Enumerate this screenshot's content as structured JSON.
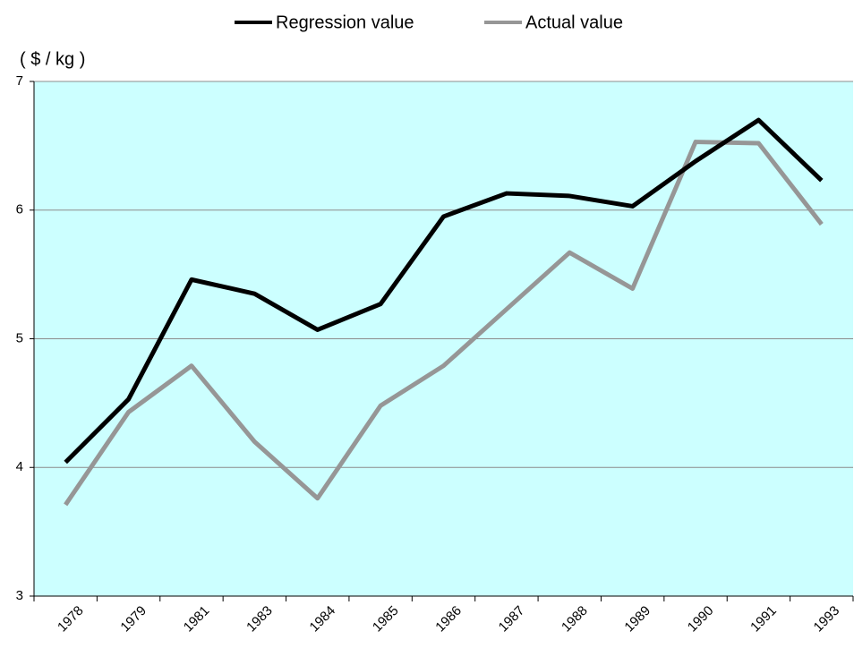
{
  "chart_data": {
    "type": "line",
    "y_label": "( $ / kg )",
    "categories": [
      "1978",
      "1979",
      "1981",
      "1983",
      "1984",
      "1985",
      "1986",
      "1987",
      "1988",
      "1989",
      "1990",
      "1991",
      "1993"
    ],
    "series": [
      {
        "name": "Regression value",
        "color": "#000000",
        "values": [
          4.04,
          4.53,
          5.46,
          5.35,
          5.07,
          5.27,
          5.95,
          6.13,
          6.11,
          6.03,
          6.38,
          6.7,
          6.23
        ]
      },
      {
        "name": "Actual value",
        "color": "#969696",
        "values": [
          3.71,
          4.43,
          4.79,
          4.2,
          3.76,
          4.48,
          4.79,
          5.23,
          5.67,
          5.39,
          6.53,
          6.52,
          5.89
        ]
      }
    ],
    "ylim": [
      3,
      7
    ],
    "yticks": [
      3,
      4,
      5,
      6,
      7
    ],
    "grid": true,
    "legend": "top",
    "background": "#ccffff"
  }
}
